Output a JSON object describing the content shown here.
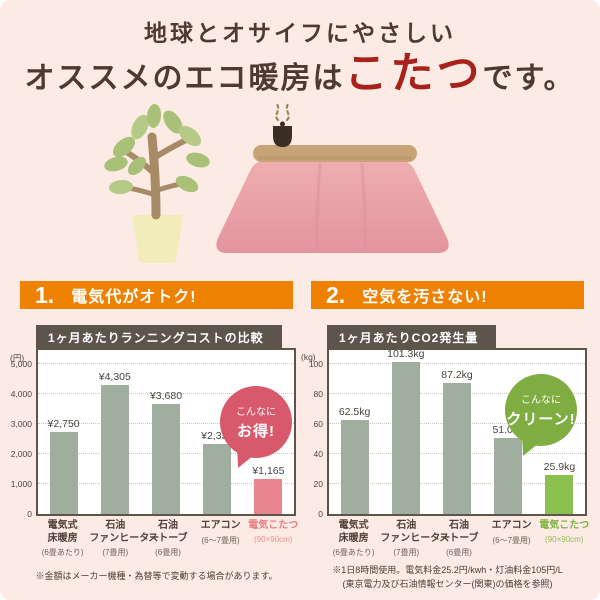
{
  "header": {
    "line1": "地球とオサイフにやさしい",
    "line2_prefix": "オススメのエコ暖房は",
    "line2_highlight": "こたつ",
    "line2_suffix": "です。"
  },
  "illustration": {
    "items": [
      "plant",
      "kotatsu",
      "teapot",
      "steam"
    ]
  },
  "colors": {
    "background": "#fcebe5",
    "accent_orange": "#ee8100",
    "title_brown": "#4e3a33",
    "highlight_red": "#a8211b",
    "panel_border": "#5d544c",
    "bar_gray": "#9fae9f",
    "bar_pink": "#e8858e",
    "bar_green": "#8bbf4f",
    "bubble_pink": "#d8596b",
    "bubble_green": "#7fad42"
  },
  "chart_data": [
    {
      "type": "bar",
      "section_number": "1.",
      "section_title": "電気代がオトク!",
      "title": "1ヶ月あたりランニングコストの比較",
      "unit": "(円)",
      "xlabel": "",
      "ylabel": "円",
      "ylim": [
        0,
        5000
      ],
      "grid": true,
      "legend": "none",
      "yticks": [
        {
          "value": 0,
          "label": "0"
        },
        {
          "value": 1000,
          "label": "1,000"
        },
        {
          "value": 2000,
          "label": "2,000"
        },
        {
          "value": 3000,
          "label": "3,000"
        },
        {
          "value": 4000,
          "label": "4,000"
        },
        {
          "value": 5000,
          "label": "5,000"
        }
      ],
      "categories": [
        {
          "name": "電気式\n床暖房",
          "sub": "(6畳あたり)"
        },
        {
          "name": "石油\nファンヒーター",
          "sub": "(7畳用)"
        },
        {
          "name": "石油\nストーブ",
          "sub": "(6畳用)"
        },
        {
          "name": "エアコン",
          "sub": "(6〜7畳用)"
        },
        {
          "name": "電気こたつ",
          "sub": "(90×90cm)"
        }
      ],
      "values": [
        2750,
        4305,
        3680,
        2335,
        1165
      ],
      "value_labels": [
        "¥2,750",
        "¥4,305",
        "¥3,680",
        "¥2,335",
        "¥1,165"
      ],
      "highlight_index": 4,
      "bar_color": "#9fae9f",
      "highlight_color": "#e8858e",
      "highlight_label_color": "#e57f82",
      "bubble": {
        "line1": "こんなに",
        "line2": "お得!",
        "color": "#d8596b"
      },
      "footnotes": [
        "※金額はメーカー機種・為替等で変動する場合があります。"
      ]
    },
    {
      "type": "bar",
      "section_number": "2.",
      "section_title": "空気を汚さない!",
      "title": "1ヶ月あたりCO2発生量",
      "unit": "(kg)",
      "xlabel": "",
      "ylabel": "kg",
      "ylim": [
        0,
        100
      ],
      "grid": true,
      "legend": "none",
      "yticks": [
        {
          "value": 0,
          "label": "0"
        },
        {
          "value": 20,
          "label": "20"
        },
        {
          "value": 40,
          "label": "40"
        },
        {
          "value": 60,
          "label": "60"
        },
        {
          "value": 80,
          "label": "80"
        },
        {
          "value": 100,
          "label": "100"
        }
      ],
      "categories": [
        {
          "name": "電気式\n床暖房",
          "sub": "(6畳あたり)"
        },
        {
          "name": "石油\nファンヒーター",
          "sub": "(7畳用)"
        },
        {
          "name": "石油\nストーブ",
          "sub": "(6畳用)"
        },
        {
          "name": "エアコン",
          "sub": "(6〜7畳用)"
        },
        {
          "name": "電気こたつ",
          "sub": "(90×90cm)"
        }
      ],
      "values": [
        62.5,
        101.3,
        87.2,
        51.0,
        25.9
      ],
      "value_labels": [
        "62.5kg",
        "101.3kg",
        "87.2kg",
        "51.0kg",
        "25.9kg"
      ],
      "highlight_index": 4,
      "bar_color": "#9fae9f",
      "highlight_color": "#8bbf4f",
      "highlight_label_color": "#7fb13f",
      "bubble": {
        "line1": "こんなに",
        "line2": "クリーン!",
        "color": "#7fad42"
      },
      "footnotes": [
        "※1日8時間使用。電気料金25.2円/kwh・灯油料金105円/L",
        "(東京電力及び石油情報センター(関東)の価格を参照)"
      ]
    }
  ]
}
